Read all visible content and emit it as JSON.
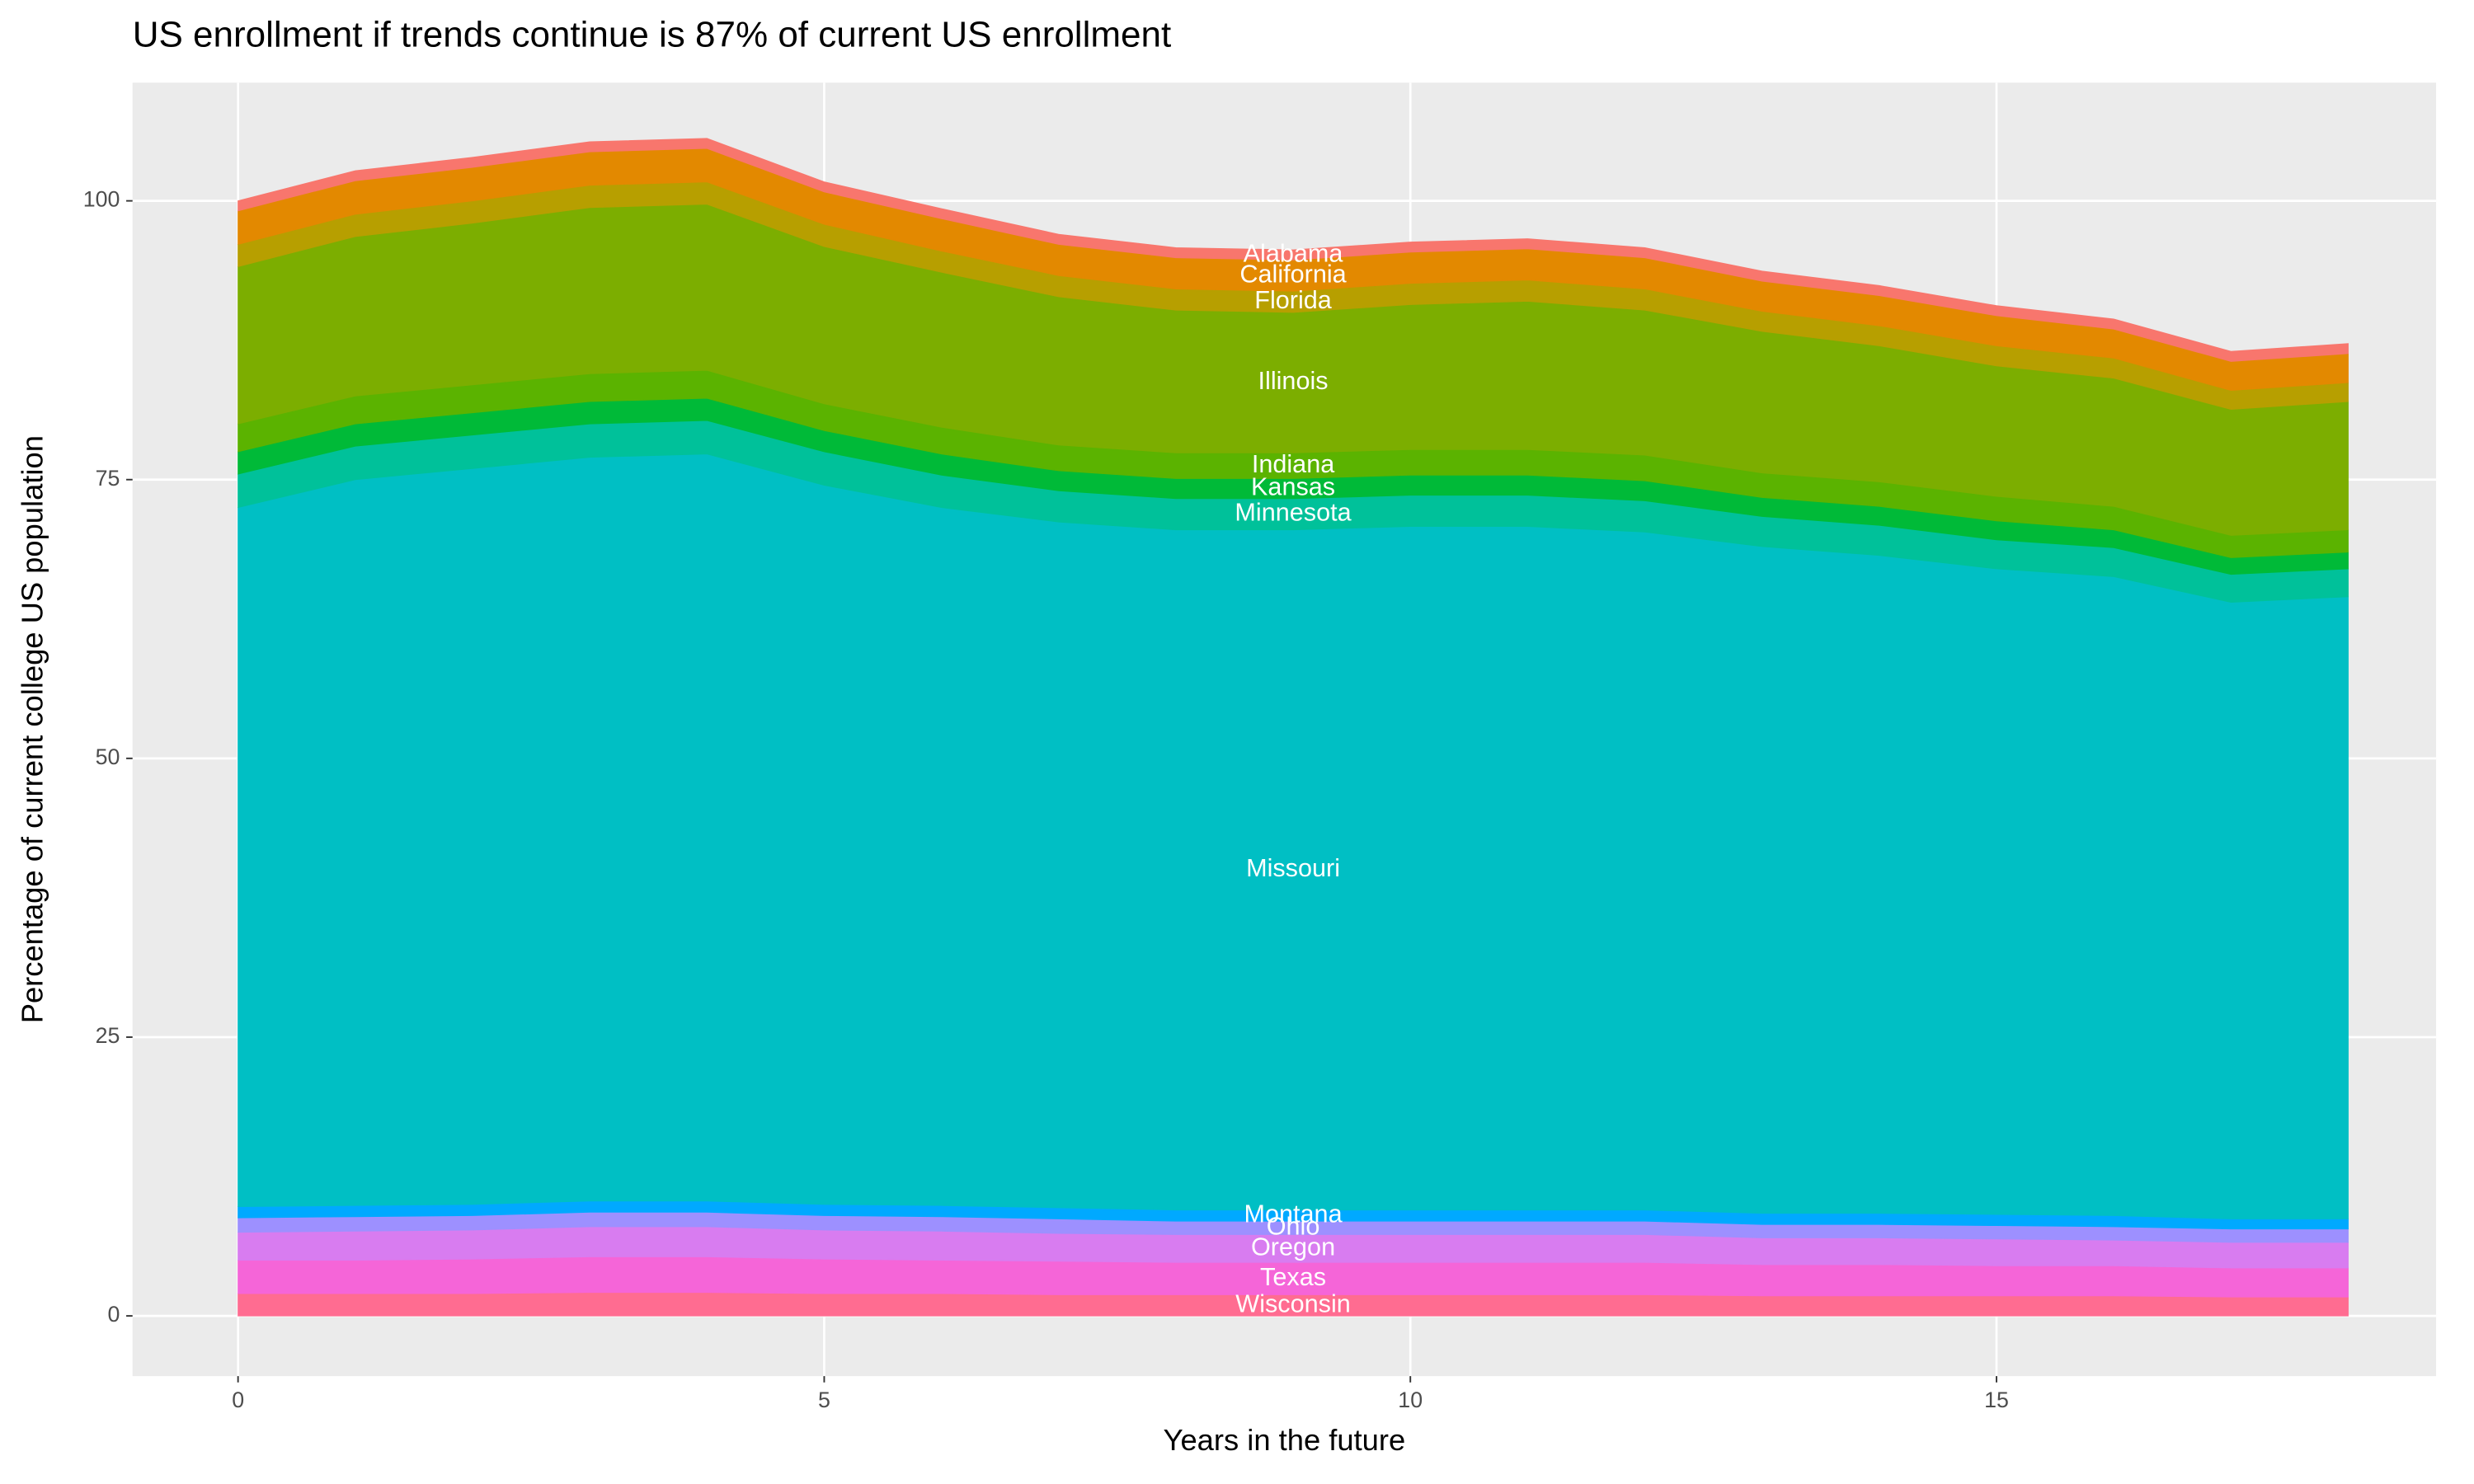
{
  "chart_data": {
    "type": "stacked_area",
    "title": "US enrollment if trends continue is 87% of current US enrollment",
    "x_label": "Years in the future",
    "y_label": "Percentage of current college US population",
    "x": [
      0,
      1,
      2,
      3,
      4,
      5,
      6,
      7,
      8,
      9,
      10,
      11,
      12,
      13,
      14,
      15,
      16,
      17,
      18
    ],
    "xlim": [
      -0.9,
      18.75
    ],
    "ylim": [
      -5.4,
      110.6
    ],
    "xticks": [
      0,
      5,
      10,
      15
    ],
    "yticks": [
      0,
      25,
      50,
      75,
      100
    ],
    "grid": true,
    "series": [
      {
        "name": "Wisconsin",
        "color": "#ff6c91",
        "values": [
          2,
          2,
          2,
          2.1,
          2.1,
          2,
          2,
          1.9,
          1.9,
          1.9,
          1.9,
          1.9,
          1.9,
          1.8,
          1.8,
          1.8,
          1.8,
          1.7,
          1.7
        ]
      },
      {
        "name": "Texas",
        "color": "#f565d8",
        "values": [
          3,
          3,
          3.1,
          3.2,
          3.2,
          3.1,
          3,
          3,
          2.9,
          2.9,
          2.9,
          2.9,
          2.9,
          2.8,
          2.8,
          2.7,
          2.7,
          2.6,
          2.6
        ]
      },
      {
        "name": "Oregon",
        "color": "#d87cf0",
        "values": [
          2.5,
          2.6,
          2.6,
          2.7,
          2.7,
          2.6,
          2.6,
          2.5,
          2.5,
          2.5,
          2.5,
          2.5,
          2.5,
          2.4,
          2.4,
          2.4,
          2.3,
          2.3,
          2.3
        ]
      },
      {
        "name": "Ohio",
        "color": "#9d90ff",
        "values": [
          1.3,
          1.3,
          1.3,
          1.3,
          1.3,
          1.3,
          1.3,
          1.3,
          1.2,
          1.2,
          1.2,
          1.2,
          1.2,
          1.2,
          1.2,
          1.2,
          1.2,
          1.2,
          1.2
        ]
      },
      {
        "name": "Montana",
        "color": "#00a9ff",
        "values": [
          1,
          1,
          1,
          1,
          1,
          1,
          1,
          1,
          1,
          1,
          1,
          1,
          1,
          1,
          1,
          1,
          1,
          0.9,
          0.9
        ]
      },
      {
        "name": "Missouri",
        "color": "#00bfc4",
        "values": [
          62.7,
          65.1,
          66,
          66.7,
          67,
          64.5,
          62.6,
          61.5,
          61,
          61,
          61.3,
          61.3,
          60.8,
          59.8,
          59,
          57.9,
          57.3,
          55.3,
          55.8
        ]
      },
      {
        "name": "Minnesota",
        "color": "#00c19a",
        "values": [
          3,
          3,
          3,
          3,
          3,
          3,
          2.9,
          2.8,
          2.8,
          2.8,
          2.8,
          2.8,
          2.8,
          2.7,
          2.7,
          2.6,
          2.6,
          2.5,
          2.5
        ]
      },
      {
        "name": "Kansas",
        "color": "#00ba38",
        "values": [
          2,
          2,
          2,
          2,
          2,
          1.9,
          1.9,
          1.8,
          1.8,
          1.8,
          1.8,
          1.8,
          1.8,
          1.7,
          1.7,
          1.7,
          1.6,
          1.5,
          1.5
        ]
      },
      {
        "name": "Indiana",
        "color": "#5bb300",
        "values": [
          2.5,
          2.5,
          2.5,
          2.5,
          2.5,
          2.4,
          2.4,
          2.3,
          2.3,
          2.3,
          2.3,
          2.3,
          2.3,
          2.2,
          2.2,
          2.2,
          2.1,
          2,
          2
        ]
      },
      {
        "name": "Illinois",
        "color": "#7cae00",
        "values": [
          14.1,
          14.3,
          14.5,
          14.9,
          14.9,
          14.1,
          13.9,
          13.3,
          12.8,
          12.6,
          13,
          13.3,
          13,
          12.7,
          12.2,
          11.7,
          11.5,
          11.3,
          11.5
        ]
      },
      {
        "name": "Florida",
        "color": "#b79f00",
        "values": [
          2,
          2,
          2,
          2,
          2,
          2,
          1.9,
          1.9,
          1.9,
          1.9,
          1.9,
          1.9,
          1.9,
          1.8,
          1.8,
          1.8,
          1.8,
          1.7,
          1.7
        ]
      },
      {
        "name": "California",
        "color": "#e38900",
        "values": [
          3,
          3,
          3,
          3,
          3,
          2.9,
          2.9,
          2.8,
          2.8,
          2.8,
          2.8,
          2.8,
          2.8,
          2.7,
          2.7,
          2.7,
          2.6,
          2.6,
          2.6
        ]
      },
      {
        "name": "Alabama",
        "color": "#f8766d",
        "values": [
          0.9,
          0.9,
          0.9,
          0.9,
          0.9,
          0.9,
          0.9,
          0.9,
          0.9,
          0.9,
          0.9,
          0.9,
          0.9,
          0.9,
          0.9,
          0.9,
          0.9,
          0.9,
          0.9
        ]
      }
    ]
  }
}
